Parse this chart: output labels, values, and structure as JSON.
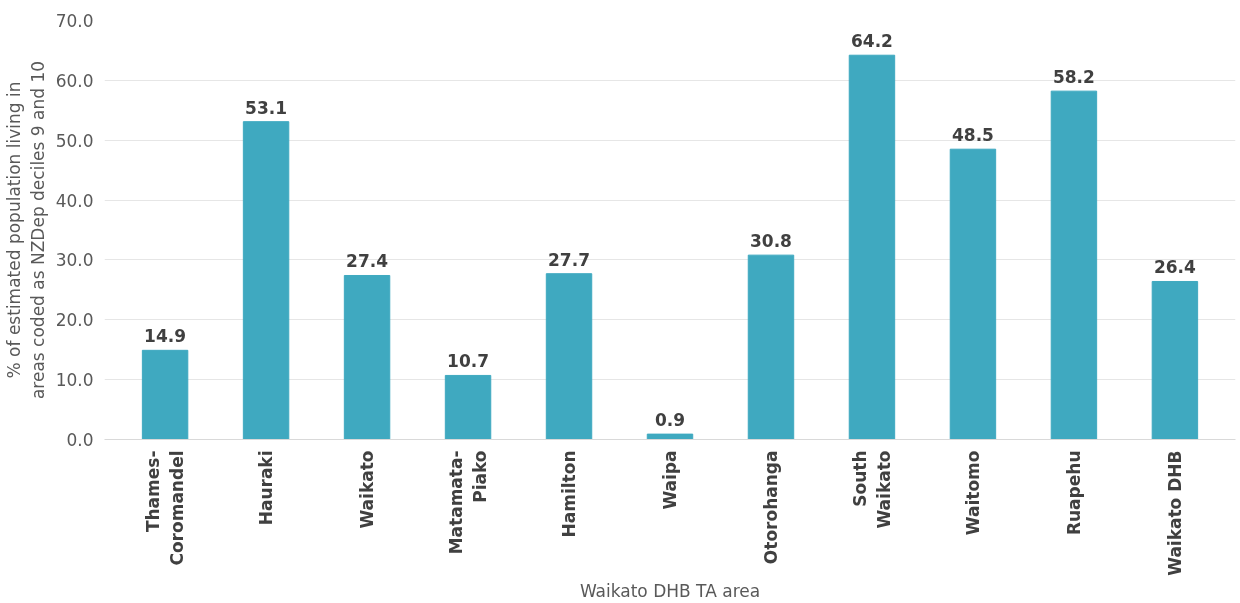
{
  "chart_data": {
    "type": "bar",
    "xlabel": "Waikato DHB TA area",
    "ylabel": "% of estimated population living in areas coded as NZDep deciles 9 and 10",
    "categories": [
      "Thames-Coromandel",
      "Hauraki",
      "Waikato",
      "Matamata-Piako",
      "Hamilton",
      "Waipa",
      "Otorohanga",
      "South Waikato",
      "Waitomo",
      "Ruapehu",
      "Waikato DHB"
    ],
    "values": [
      14.9,
      53.1,
      27.4,
      10.7,
      27.7,
      0.9,
      30.8,
      64.2,
      48.5,
      58.2,
      26.4
    ],
    "color": "#3fa9c0",
    "ylim": [
      0,
      70
    ],
    "yticks": [
      {
        "value": 0,
        "label": "0.0"
      },
      {
        "value": 10,
        "label": "10.0"
      },
      {
        "value": 20,
        "label": "20.0"
      },
      {
        "value": 30,
        "label": "30.0"
      },
      {
        "value": 40,
        "label": "40.0"
      },
      {
        "value": 50,
        "label": "50.0"
      },
      {
        "value": 60,
        "label": "60.0"
      },
      {
        "value": 70,
        "label": "70.0"
      }
    ],
    "grid": "y",
    "data_labels": true
  }
}
